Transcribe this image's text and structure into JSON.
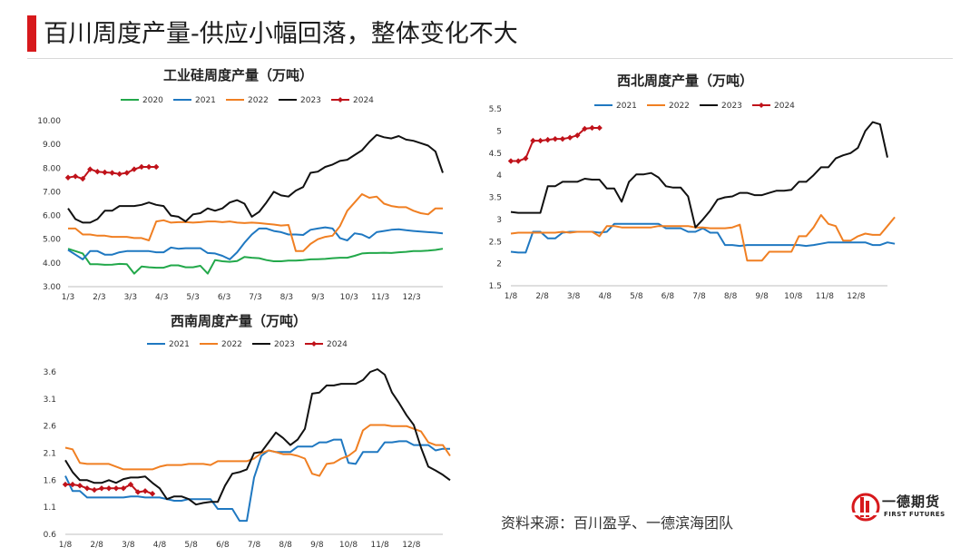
{
  "page": {
    "title": "百川周度产量-供应小幅回落，整体变化不大",
    "source": "资料来源：百川盈孚、一德滨海团队"
  },
  "logo": {
    "cn": "一德期货",
    "en": "FIRST FUTURES"
  },
  "colors": {
    "2020": "#22a84a",
    "2021": "#1f78c1",
    "2022": "#f07f22",
    "2023": "#111111",
    "2024": "#c0121a"
  },
  "chart_data": [
    {
      "type": "line",
      "title": "工业硅周度产量（万吨）",
      "ylim": [
        3.0,
        10.0
      ],
      "yticks": [
        "3.00",
        "4.00",
        "5.00",
        "6.00",
        "7.00",
        "8.00",
        "9.00",
        "10.00"
      ],
      "xticks": [
        "1/3",
        "2/3",
        "3/3",
        "4/3",
        "5/3",
        "6/3",
        "7/3",
        "8/3",
        "9/3",
        "10/3",
        "11/3",
        "12/3"
      ],
      "legend_position": "top",
      "series": [
        {
          "name": "2020",
          "values": [
            4.6,
            4.5,
            4.4,
            3.95,
            3.95,
            3.92,
            3.93,
            3.96,
            3.95,
            3.55,
            3.85,
            3.82,
            3.8,
            3.8,
            3.9,
            3.9,
            3.82,
            3.82,
            3.88,
            3.55,
            4.12,
            4.07,
            4.05,
            4.08,
            4.25,
            4.22,
            4.2,
            4.12,
            4.07,
            4.07,
            4.1,
            4.1,
            4.12,
            4.15,
            4.16,
            4.17,
            4.2,
            4.22,
            4.22,
            4.3,
            4.4,
            4.42,
            4.42,
            4.43,
            4.42,
            4.45,
            4.47,
            4.5,
            4.5,
            4.52,
            4.55,
            4.6
          ]
        },
        {
          "name": "2021",
          "values": [
            4.55,
            4.35,
            4.15,
            4.5,
            4.5,
            4.35,
            4.35,
            4.45,
            4.5,
            4.5,
            4.5,
            4.5,
            4.45,
            4.45,
            4.65,
            4.6,
            4.62,
            4.62,
            4.62,
            4.42,
            4.4,
            4.3,
            4.15,
            4.45,
            4.85,
            5.2,
            5.45,
            5.45,
            5.35,
            5.3,
            5.2,
            5.2,
            5.18,
            5.4,
            5.45,
            5.5,
            5.45,
            5.05,
            4.95,
            5.25,
            5.2,
            5.05,
            5.3,
            5.35,
            5.4,
            5.42,
            5.38,
            5.35,
            5.32,
            5.3,
            5.28,
            5.25
          ]
        },
        {
          "name": "2022",
          "values": [
            5.45,
            5.45,
            5.2,
            5.2,
            5.15,
            5.15,
            5.1,
            5.1,
            5.1,
            5.05,
            5.05,
            4.95,
            5.75,
            5.8,
            5.7,
            5.72,
            5.72,
            5.7,
            5.72,
            5.75,
            5.75,
            5.72,
            5.75,
            5.7,
            5.68,
            5.7,
            5.68,
            5.65,
            5.62,
            5.58,
            5.6,
            4.5,
            4.5,
            4.8,
            5.0,
            5.1,
            5.15,
            5.55,
            6.2,
            6.55,
            6.9,
            6.75,
            6.8,
            6.5,
            6.4,
            6.35,
            6.35,
            6.2,
            6.1,
            6.05,
            6.3,
            6.3
          ]
        },
        {
          "name": "2023",
          "values": [
            6.3,
            5.85,
            5.7,
            5.7,
            5.85,
            6.2,
            6.2,
            6.4,
            6.4,
            6.4,
            6.45,
            6.55,
            6.45,
            6.4,
            6.0,
            5.95,
            5.75,
            6.05,
            6.1,
            6.3,
            6.2,
            6.3,
            6.55,
            6.65,
            6.5,
            5.95,
            6.15,
            6.55,
            7.0,
            6.85,
            6.8,
            7.05,
            7.2,
            7.8,
            7.85,
            8.05,
            8.15,
            8.3,
            8.35,
            8.55,
            8.75,
            9.1,
            9.4,
            9.3,
            9.25,
            9.35,
            9.2,
            9.15,
            9.05,
            8.95,
            8.7,
            7.8
          ]
        },
        {
          "name": "2024",
          "values": [
            7.6,
            7.65,
            7.55,
            7.95,
            7.85,
            7.82,
            7.8,
            7.75,
            7.8,
            7.95,
            8.05,
            8.05,
            8.05
          ]
        }
      ]
    },
    {
      "type": "line",
      "title": "西北周度产量（万吨）",
      "ylim": [
        1.5,
        5.5
      ],
      "yticks": [
        "1.5",
        "2",
        "2.5",
        "3",
        "3.5",
        "4",
        "4.5",
        "5",
        "5.5"
      ],
      "xticks": [
        "1/8",
        "2/8",
        "3/8",
        "4/8",
        "5/8",
        "6/8",
        "7/8",
        "8/8",
        "9/8",
        "10/8",
        "11/8",
        "12/8"
      ],
      "legend_position": "top",
      "series": [
        {
          "name": "2021",
          "values": [
            2.27,
            2.25,
            2.25,
            2.72,
            2.72,
            2.57,
            2.57,
            2.7,
            2.72,
            2.72,
            2.72,
            2.72,
            2.7,
            2.72,
            2.9,
            2.9,
            2.9,
            2.9,
            2.9,
            2.9,
            2.9,
            2.8,
            2.8,
            2.8,
            2.72,
            2.72,
            2.8,
            2.7,
            2.7,
            2.42,
            2.42,
            2.4,
            2.42,
            2.42,
            2.42,
            2.42,
            2.42,
            2.42,
            2.42,
            2.42,
            2.4,
            2.42,
            2.45,
            2.48,
            2.48,
            2.48,
            2.48,
            2.48,
            2.48,
            2.42,
            2.42,
            2.48,
            2.45
          ]
        },
        {
          "name": "2022",
          "values": [
            2.68,
            2.7,
            2.7,
            2.7,
            2.7,
            2.7,
            2.7,
            2.72,
            2.7,
            2.72,
            2.72,
            2.72,
            2.62,
            2.85,
            2.85,
            2.82,
            2.82,
            2.82,
            2.82,
            2.82,
            2.85,
            2.85,
            2.85,
            2.85,
            2.85,
            2.82,
            2.82,
            2.8,
            2.8,
            2.8,
            2.82,
            2.88,
            2.07,
            2.07,
            2.07,
            2.27,
            2.27,
            2.27,
            2.27,
            2.62,
            2.62,
            2.82,
            3.1,
            2.9,
            2.85,
            2.52,
            2.52,
            2.62,
            2.68,
            2.65,
            2.65,
            2.85,
            3.05
          ]
        },
        {
          "name": "2023",
          "values": [
            3.17,
            3.15,
            3.15,
            3.15,
            3.15,
            3.75,
            3.75,
            3.85,
            3.85,
            3.85,
            3.92,
            3.9,
            3.9,
            3.7,
            3.7,
            3.4,
            3.85,
            4.02,
            4.02,
            4.05,
            3.95,
            3.75,
            3.72,
            3.72,
            3.52,
            2.82,
            3.0,
            3.2,
            3.45,
            3.5,
            3.52,
            3.6,
            3.6,
            3.55,
            3.55,
            3.6,
            3.65,
            3.65,
            3.67,
            3.85,
            3.85,
            4.0,
            4.18,
            4.18,
            4.38,
            4.45,
            4.5,
            4.62,
            5.0,
            5.2,
            5.15,
            4.4
          ]
        },
        {
          "name": "2024",
          "values": [
            4.32,
            4.32,
            4.38,
            4.78,
            4.78,
            4.8,
            4.82,
            4.82,
            4.85,
            4.9,
            5.05,
            5.07,
            5.07
          ]
        }
      ]
    },
    {
      "type": "line",
      "title": "西南周度产量（万吨）",
      "ylim": [
        0.6,
        3.6
      ],
      "yticks": [
        "0.6",
        "1.1",
        "1.6",
        "2.1",
        "2.6",
        "3.1",
        "3.6"
      ],
      "xticks": [
        "1/8",
        "2/8",
        "3/8",
        "4/8",
        "5/8",
        "6/8",
        "7/8",
        "8/8",
        "9/8",
        "10/8",
        "11/8",
        "12/8"
      ],
      "legend_position": "top",
      "series": [
        {
          "name": "2021",
          "values": [
            1.68,
            1.4,
            1.4,
            1.28,
            1.28,
            1.28,
            1.28,
            1.28,
            1.28,
            1.3,
            1.3,
            1.28,
            1.28,
            1.28,
            1.25,
            1.22,
            1.22,
            1.25,
            1.25,
            1.25,
            1.25,
            1.07,
            1.07,
            1.07,
            0.85,
            0.85,
            1.65,
            2.05,
            2.15,
            2.12,
            2.12,
            2.12,
            2.22,
            2.22,
            2.22,
            2.3,
            2.3,
            2.35,
            2.35,
            1.92,
            1.9,
            2.12,
            2.12,
            2.12,
            2.3,
            2.3,
            2.32,
            2.32,
            2.25,
            2.25,
            2.25,
            2.15,
            2.18,
            2.18
          ]
        },
        {
          "name": "2022",
          "values": [
            2.2,
            2.17,
            1.92,
            1.9,
            1.9,
            1.9,
            1.9,
            1.85,
            1.8,
            1.8,
            1.8,
            1.8,
            1.8,
            1.85,
            1.88,
            1.88,
            1.88,
            1.9,
            1.9,
            1.9,
            1.88,
            1.95,
            1.95,
            1.95,
            1.95,
            1.95,
            2.0,
            2.1,
            2.15,
            2.12,
            2.08,
            2.08,
            2.05,
            2.0,
            1.72,
            1.68,
            1.9,
            1.92,
            2.0,
            2.05,
            2.15,
            2.52,
            2.62,
            2.62,
            2.62,
            2.6,
            2.6,
            2.6,
            2.55,
            2.5,
            2.3,
            2.25,
            2.25,
            2.05
          ]
        },
        {
          "name": "2023",
          "values": [
            1.97,
            1.75,
            1.6,
            1.6,
            1.55,
            1.55,
            1.6,
            1.55,
            1.62,
            1.65,
            1.65,
            1.67,
            1.55,
            1.45,
            1.25,
            1.3,
            1.3,
            1.25,
            1.15,
            1.18,
            1.2,
            1.2,
            1.5,
            1.72,
            1.75,
            1.8,
            2.1,
            2.12,
            2.3,
            2.48,
            2.38,
            2.25,
            2.35,
            2.55,
            3.2,
            3.22,
            3.35,
            3.35,
            3.38,
            3.38,
            3.38,
            3.45,
            3.6,
            3.65,
            3.55,
            3.22,
            3.02,
            2.8,
            2.62,
            2.2,
            1.85,
            1.78,
            1.7,
            1.6
          ]
        },
        {
          "name": "2024",
          "values": [
            1.52,
            1.52,
            1.5,
            1.45,
            1.42,
            1.45,
            1.45,
            1.45,
            1.45,
            1.52,
            1.38,
            1.4,
            1.35
          ]
        }
      ]
    }
  ]
}
